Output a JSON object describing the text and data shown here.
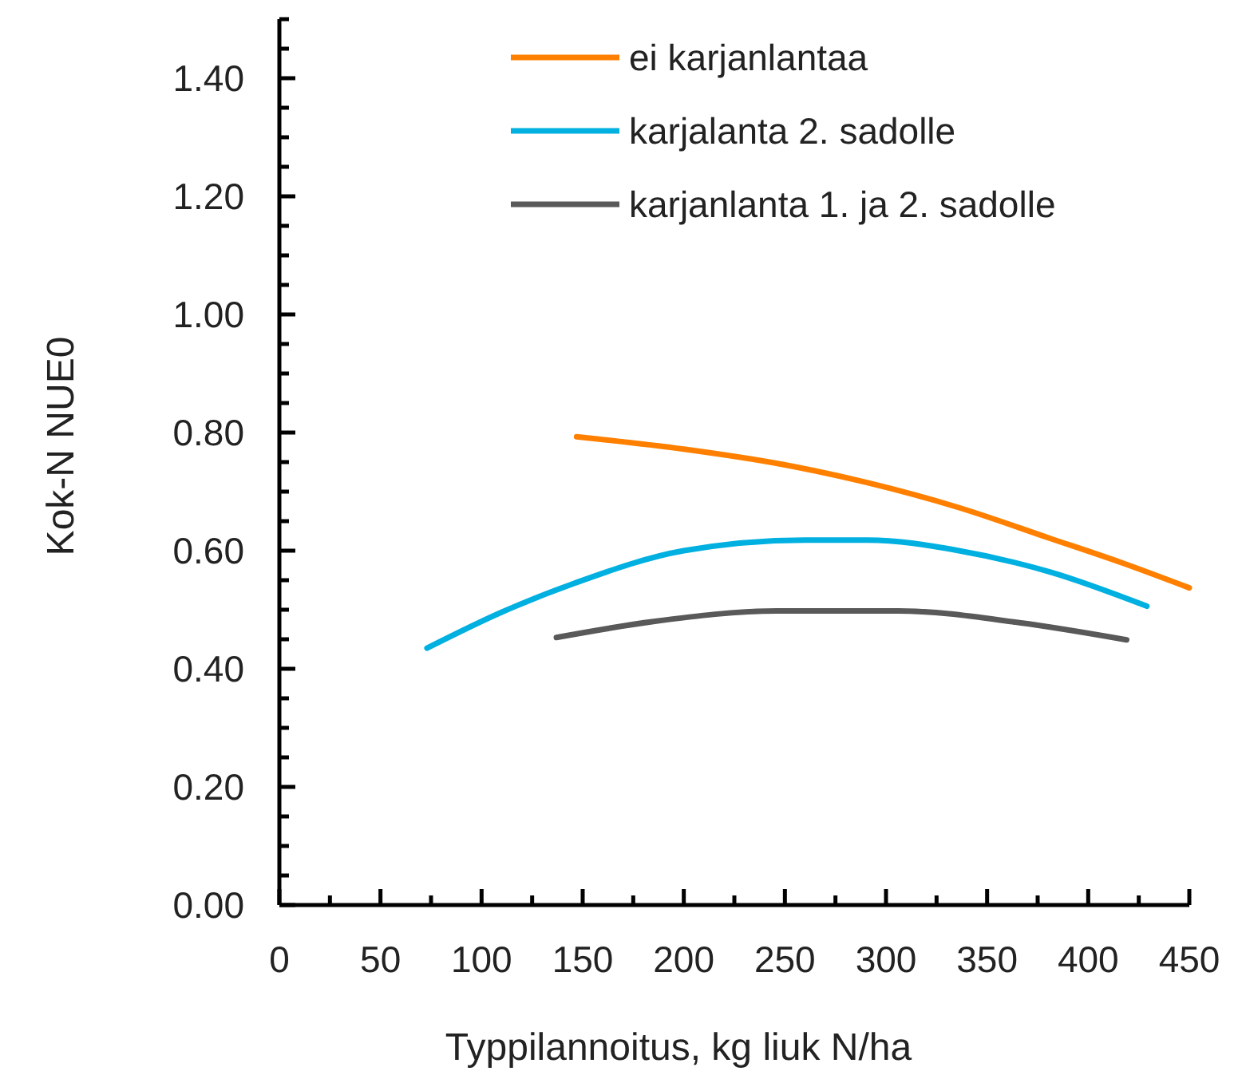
{
  "chart_data": {
    "type": "line",
    "xlabel": "Typpilannoitus, kg liuk N/ha",
    "ylabel": "Kok-N NUE0",
    "xlim": [
      0,
      450
    ],
    "ylim": [
      0,
      1.5
    ],
    "xticks": [
      0,
      {
        "value": 25,
        "label": null
      },
      50,
      {
        "value": 75,
        "label": null
      },
      100,
      {
        "value": 125,
        "label": null
      },
      150,
      {
        "value": 175,
        "label": null
      },
      200,
      {
        "value": 225,
        "label": null
      },
      250,
      {
        "value": 275,
        "label": null
      },
      300,
      {
        "value": 325,
        "label": null
      },
      350,
      {
        "value": 375,
        "label": null
      },
      400,
      {
        "value": 425,
        "label": null
      },
      450
    ],
    "yticks": [
      {
        "value": 0,
        "label": "0.00"
      },
      {
        "value": 0.05,
        "label": null
      },
      {
        "value": 0.1,
        "label": null
      },
      {
        "value": 0.15,
        "label": null
      },
      {
        "value": 0.2,
        "label": "0.20"
      },
      {
        "value": 0.25,
        "label": null
      },
      {
        "value": 0.3,
        "label": null
      },
      {
        "value": 0.35,
        "label": null
      },
      {
        "value": 0.4,
        "label": "0.40"
      },
      {
        "value": 0.45,
        "label": null
      },
      {
        "value": 0.5,
        "label": null
      },
      {
        "value": 0.55,
        "label": null
      },
      {
        "value": 0.6,
        "label": "0.60"
      },
      {
        "value": 0.65,
        "label": null
      },
      {
        "value": 0.7,
        "label": null
      },
      {
        "value": 0.75,
        "label": null
      },
      {
        "value": 0.8,
        "label": "0.80"
      },
      {
        "value": 0.85,
        "label": null
      },
      {
        "value": 0.9,
        "label": null
      },
      {
        "value": 0.95,
        "label": null
      },
      {
        "value": 1.0,
        "label": "1.00"
      },
      {
        "value": 1.05,
        "label": null
      },
      {
        "value": 1.1,
        "label": null
      },
      {
        "value": 1.15,
        "label": null
      },
      {
        "value": 1.2,
        "label": "1.20"
      },
      {
        "value": 1.25,
        "label": null
      },
      {
        "value": 1.3,
        "label": null
      },
      {
        "value": 1.35,
        "label": null
      },
      {
        "value": 1.4,
        "label": "1.40"
      },
      {
        "value": 1.45,
        "label": null
      },
      {
        "value": 1.5,
        "label": null
      }
    ],
    "grid": false,
    "legend": "top right",
    "marker": "none",
    "line_style": "solid",
    "series": [
      {
        "name": "ei karjanlantaa",
        "color": "#ff8000",
        "x": [
          147,
          200,
          249,
          291,
          336,
          381,
          417,
          450
        ],
        "values": [
          0.793,
          0.772,
          0.746,
          0.715,
          0.673,
          0.621,
          0.579,
          0.537
        ]
      },
      {
        "name": "karjalanta 2. sadolle",
        "color": "#00b0e0",
        "x": [
          73,
          110,
          146,
          200,
          260,
          291,
          336,
          381,
          429
        ],
        "values": [
          0.435,
          0.496,
          0.545,
          0.6,
          0.618,
          0.618,
          0.6,
          0.564,
          0.506
        ]
      },
      {
        "name": "karjanlanta 1. ja 2. sadolle",
        "color": "#595959",
        "x": [
          137,
          185,
          246,
          306,
          366,
          419
        ],
        "values": [
          0.453,
          0.48,
          0.498,
          0.498,
          0.478,
          0.449
        ]
      }
    ]
  }
}
